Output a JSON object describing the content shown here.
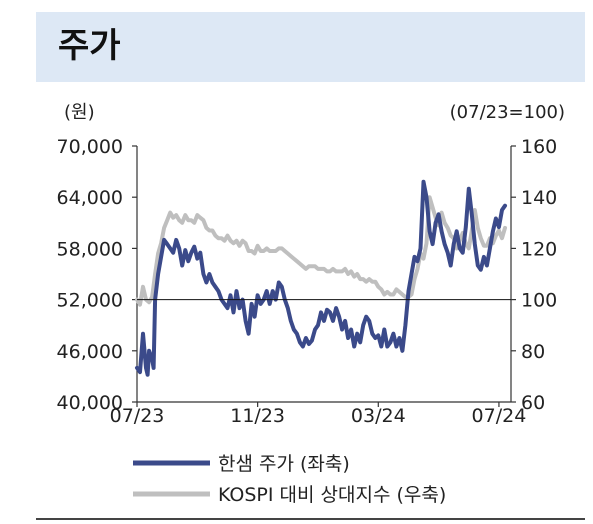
{
  "header": {
    "title": "주가"
  },
  "chart_data": {
    "type": "line",
    "left_axis": {
      "unit_label": "(원)",
      "ylim": [
        40000,
        70000
      ],
      "ticks": [
        40000,
        46000,
        52000,
        58000,
        64000,
        70000
      ],
      "tick_labels": [
        "40,000",
        "46,000",
        "52,000",
        "58,000",
        "64,000",
        "70,000"
      ]
    },
    "right_axis": {
      "unit_label": "(07/23=100)",
      "ylim": [
        60,
        160
      ],
      "ticks": [
        60,
        80,
        100,
        120,
        140,
        160
      ],
      "tick_labels": [
        "60",
        "80",
        "100",
        "120",
        "140",
        "160"
      ]
    },
    "x_axis": {
      "tick_labels": [
        "07/23",
        "11/23",
        "03/24",
        "07/24"
      ],
      "tick_positions": [
        0,
        4,
        8,
        12
      ],
      "xlim": [
        0,
        12.4
      ]
    },
    "reference_line": {
      "axis": "right",
      "value": 100
    },
    "series": [
      {
        "name": "한샘 주가 (좌축)",
        "axis": "left",
        "color": "#3b4a8a",
        "x": [
          0,
          0.1,
          0.2,
          0.3,
          0.35,
          0.4,
          0.5,
          0.55,
          0.6,
          0.7,
          0.8,
          0.9,
          1.0,
          1.1,
          1.2,
          1.3,
          1.4,
          1.5,
          1.6,
          1.7,
          1.8,
          1.9,
          2.0,
          2.1,
          2.2,
          2.3,
          2.4,
          2.5,
          2.6,
          2.7,
          2.8,
          2.9,
          3.0,
          3.1,
          3.2,
          3.3,
          3.4,
          3.5,
          3.6,
          3.7,
          3.8,
          3.9,
          4.0,
          4.1,
          4.2,
          4.3,
          4.4,
          4.5,
          4.6,
          4.7,
          4.8,
          4.9,
          5.0,
          5.1,
          5.2,
          5.3,
          5.4,
          5.5,
          5.6,
          5.7,
          5.8,
          5.9,
          6.0,
          6.1,
          6.2,
          6.3,
          6.4,
          6.5,
          6.6,
          6.7,
          6.8,
          6.9,
          7.0,
          7.1,
          7.2,
          7.3,
          7.4,
          7.5,
          7.6,
          7.7,
          7.8,
          7.9,
          8.0,
          8.1,
          8.2,
          8.3,
          8.4,
          8.5,
          8.6,
          8.7,
          8.8,
          8.9,
          9.0,
          9.1,
          9.2,
          9.3,
          9.4,
          9.5,
          9.6,
          9.7,
          9.8,
          9.9,
          10.0,
          10.1,
          10.2,
          10.3,
          10.4,
          10.5,
          10.6,
          10.7,
          10.8,
          10.9,
          11.0,
          11.1,
          11.2,
          11.3,
          11.4,
          11.5,
          11.6,
          11.7,
          11.8,
          11.9,
          12.0,
          12.1,
          12.2
        ],
        "values": [
          44000,
          43500,
          48000,
          44000,
          43200,
          46000,
          45000,
          44000,
          52000,
          55000,
          57000,
          59000,
          58500,
          58000,
          57500,
          59000,
          58000,
          56000,
          57800,
          56500,
          57500,
          58200,
          56800,
          57500,
          55000,
          54000,
          55000,
          54000,
          53500,
          53000,
          52000,
          51500,
          51000,
          52500,
          50500,
          53000,
          51000,
          52000,
          49500,
          48000,
          51500,
          50000,
          52500,
          51500,
          52000,
          53000,
          51500,
          53000,
          52000,
          54000,
          53500,
          52000,
          51000,
          49500,
          48500,
          48000,
          47000,
          46500,
          47500,
          46800,
          47200,
          48500,
          49000,
          50500,
          49500,
          50800,
          50500,
          49500,
          51000,
          50000,
          48500,
          49500,
          47500,
          48500,
          46500,
          48000,
          47000,
          49000,
          50000,
          49500,
          48000,
          47500,
          47800,
          46500,
          48500,
          46500,
          47000,
          48000,
          46500,
          47500,
          46000,
          49000,
          53000,
          55000,
          57000,
          56500,
          58000,
          65800,
          64000,
          60000,
          58500,
          61000,
          62000,
          60000,
          58500,
          57500,
          56000,
          58500,
          60000,
          58000,
          57500,
          60500,
          65000,
          62000,
          58500,
          56000,
          55500,
          57000,
          56000,
          58000,
          60000,
          61500,
          60500,
          62500,
          63000
        ]
      },
      {
        "name": "KOSPI 대비 상대지수 (우축)",
        "axis": "right",
        "color": "#bfbfbf",
        "x": [
          0,
          0.1,
          0.2,
          0.3,
          0.4,
          0.5,
          0.6,
          0.7,
          0.8,
          0.9,
          1.0,
          1.1,
          1.2,
          1.3,
          1.4,
          1.5,
          1.6,
          1.7,
          1.8,
          1.9,
          2.0,
          2.1,
          2.2,
          2.3,
          2.4,
          2.5,
          2.6,
          2.7,
          2.8,
          2.9,
          3.0,
          3.1,
          3.2,
          3.3,
          3.4,
          3.5,
          3.6,
          3.7,
          3.8,
          3.9,
          4.0,
          4.1,
          4.2,
          4.3,
          4.4,
          4.5,
          4.6,
          4.7,
          4.8,
          4.9,
          5.0,
          5.1,
          5.2,
          5.3,
          5.4,
          5.5,
          5.6,
          5.7,
          5.8,
          5.9,
          6.0,
          6.1,
          6.2,
          6.3,
          6.4,
          6.5,
          6.6,
          6.7,
          6.8,
          6.9,
          7.0,
          7.1,
          7.2,
          7.3,
          7.4,
          7.5,
          7.6,
          7.7,
          7.8,
          7.9,
          8.0,
          8.1,
          8.2,
          8.3,
          8.4,
          8.5,
          8.6,
          8.7,
          8.8,
          8.9,
          9.0,
          9.1,
          9.2,
          9.3,
          9.4,
          9.5,
          9.6,
          9.7,
          9.8,
          9.9,
          10.0,
          10.1,
          10.2,
          10.3,
          10.4,
          10.5,
          10.6,
          10.7,
          10.8,
          10.9,
          11.0,
          11.1,
          11.2,
          11.3,
          11.4,
          11.5,
          11.6,
          11.7,
          11.8,
          11.9,
          12.0,
          12.1,
          12.2
        ],
        "values": [
          100,
          98,
          105,
          100,
          99,
          101,
          110,
          118,
          122,
          128,
          131,
          134,
          132,
          133,
          131,
          130,
          133,
          131,
          131,
          130,
          133,
          132,
          131,
          128,
          127,
          127,
          125,
          124,
          124,
          123,
          125,
          123,
          122,
          123,
          121,
          123,
          122,
          119,
          119,
          118,
          121,
          119,
          119,
          120,
          119,
          119,
          119,
          120,
          120,
          119,
          118,
          117,
          116,
          115,
          114,
          113,
          112,
          113,
          113,
          113,
          112,
          112,
          112,
          111,
          111,
          112,
          111,
          111,
          111,
          112,
          110,
          111,
          109,
          110,
          108,
          108,
          107,
          108,
          107,
          107,
          105,
          104,
          102,
          103,
          102,
          102,
          104,
          103,
          102,
          101,
          101,
          102,
          108,
          112,
          118,
          116,
          122,
          140,
          136,
          132,
          129,
          134,
          130,
          128,
          125,
          124,
          120,
          123,
          126,
          122,
          120,
          127,
          135,
          128,
          124,
          121,
          121,
          124,
          122,
          125,
          127,
          124,
          128
        ]
      }
    ],
    "legend": {
      "placement": "bottom"
    },
    "grid": false
  }
}
